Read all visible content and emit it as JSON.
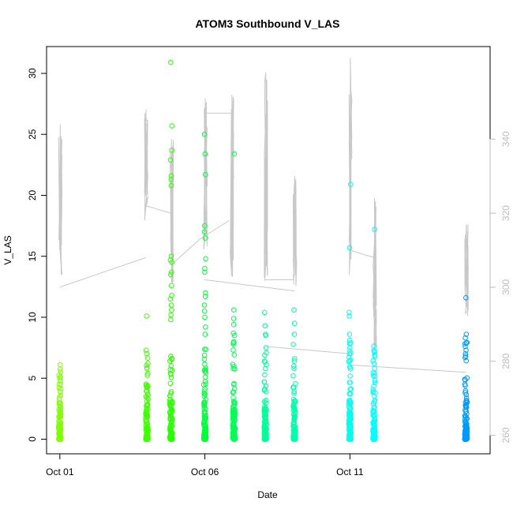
{
  "chart_data": {
    "type": "scatter",
    "title": "ATOM3 Southbound V_LAS",
    "xlabel": "Date",
    "ylabel": "V_LAS",
    "x_axis": {
      "type": "date",
      "range": [
        "2015-09-30T13:00",
        "2015-10-15T20:00"
      ],
      "ticks": [
        {
          "value": "2015-10-01",
          "label": "Oct 01"
        },
        {
          "value": "2015-10-06",
          "label": "Oct 06"
        },
        {
          "value": "2015-10-11",
          "label": "Oct 11"
        }
      ]
    },
    "y_axis_left": {
      "range": [
        -1.2,
        32.2
      ],
      "ticks": [
        0,
        5,
        10,
        15,
        20,
        25,
        30
      ]
    },
    "y_axis_right": {
      "range": [
        255,
        365
      ],
      "ticks": [
        260,
        280,
        300,
        320,
        340
      ],
      "color": "#bdbdbd"
    },
    "grid": false,
    "legend": "none",
    "points_color_scale": "green-to-blue by date",
    "clusters": [
      {
        "x": "2015-10-01T00:00",
        "color": "#80ff00",
        "max": 6.1,
        "outliers": [
          6.1,
          5.0,
          4.8,
          4.5,
          4.2,
          3.9,
          3.6,
          3.3,
          3.0
        ]
      },
      {
        "x": "2015-10-04T00:00",
        "color": "#40ff00",
        "max": 10.1,
        "outliers": [
          10.1,
          7.3,
          3.1,
          2.2,
          1.5
        ]
      },
      {
        "x": "2015-10-04T20:00",
        "color": "#2aff00",
        "max": 30.9,
        "outliers": [
          30.9,
          25.7,
          23.7,
          22.9,
          21.6,
          21.3,
          20.8,
          15.0,
          14.7,
          14.5,
          13.7,
          13.5,
          12.6,
          11.8,
          11.5,
          11.0,
          10.6,
          10.2,
          9.8
        ]
      },
      {
        "x": "2015-10-06T00:00",
        "color": "#00ff3a",
        "max": 25.0,
        "outliers": [
          25.0,
          23.4,
          21.7,
          17.5,
          17.0,
          16.5,
          14.8,
          14.0,
          13.7,
          12.0,
          11.7,
          11.0,
          10.5,
          10.0,
          9.2,
          8.6
        ]
      },
      {
        "x": "2015-10-07T00:00",
        "color": "#00ff55",
        "max": 23.4,
        "outliers": [
          23.4,
          10.6,
          9.9,
          9.4,
          8.7,
          8.5,
          8.0
        ]
      },
      {
        "x": "2015-10-08T02:00",
        "color": "#00ff99",
        "max": 10.4,
        "outliers": [
          10.4,
          9.3,
          8.6,
          8.5,
          7.5,
          6.9
        ]
      },
      {
        "x": "2015-10-09T02:00",
        "color": "#00ffaa",
        "max": 10.6,
        "outliers": [
          10.6,
          9.5,
          8.6,
          6.4,
          5.8
        ]
      },
      {
        "x": "2015-10-11T00:00",
        "color": "#00ffee",
        "max": 20.9,
        "outliers": [
          20.9,
          15.7,
          10.4,
          10.1,
          8.6,
          8.1,
          7.5,
          7.0,
          6.5
        ]
      },
      {
        "x": "2015-10-11T20:00",
        "color": "#00ffff",
        "max": 17.2,
        "outliers": [
          17.2,
          7.3,
          6.9,
          6.2,
          5.4
        ]
      },
      {
        "x": "2015-10-15T00:00",
        "color": "#0099ff",
        "max": 11.6,
        "outliers": [
          11.6,
          8.6,
          8.3,
          7.9,
          7.6,
          7.3,
          7.0,
          6.7
        ]
      }
    ],
    "gray_series": {
      "axis": "right",
      "color": "#c8c8c8",
      "bursts": [
        {
          "x": "2015-10-01T00:00",
          "low": 301,
          "high": 344
        },
        {
          "x": "2015-10-03T23:00",
          "low": 318,
          "high": 348
        },
        {
          "x": "2015-10-04T20:00",
          "low": 300,
          "high": 340
        },
        {
          "x": "2015-10-06T00:00",
          "low": 310,
          "high": 351
        },
        {
          "x": "2015-10-06T22:00",
          "low": 302,
          "high": 352
        },
        {
          "x": "2015-10-08T02:00",
          "low": 300,
          "high": 358
        },
        {
          "x": "2015-10-09T02:00",
          "low": 300,
          "high": 330
        },
        {
          "x": "2015-10-11T00:00",
          "low": 300,
          "high": 362
        },
        {
          "x": "2015-10-11T20:00",
          "low": 282,
          "high": 324
        },
        {
          "x": "2015-10-15T00:00",
          "low": 292,
          "high": 317
        }
      ],
      "connections": [
        {
          "from": [
            "2015-10-01T00:00",
            300
          ],
          "to": [
            "2015-10-03T23:00",
            308
          ]
        },
        {
          "from": [
            "2015-10-03T23:00",
            322
          ],
          "to": [
            "2015-10-04T20:00",
            320
          ]
        },
        {
          "from": [
            "2015-10-04T20:00",
            306
          ],
          "to": [
            "2015-10-05T20:00",
            313
          ]
        },
        {
          "from": [
            "2015-10-05T20:00",
            313
          ],
          "to": [
            "2015-10-06T20:00",
            318
          ]
        },
        {
          "from": [
            "2015-10-06T00:00",
            347
          ],
          "to": [
            "2015-10-06T22:00",
            347
          ]
        },
        {
          "from": [
            "2015-10-06T00:00",
            302
          ],
          "to": [
            "2015-10-09T02:00",
            299
          ]
        },
        {
          "from": [
            "2015-10-08T02:00",
            302
          ],
          "to": [
            "2015-10-09T02:00",
            302
          ]
        },
        {
          "from": [
            "2015-10-08T03:00",
            284
          ],
          "to": [
            "2015-10-11T00:00",
            282
          ]
        },
        {
          "from": [
            "2015-10-11T00:00",
            310
          ],
          "to": [
            "2015-10-11T20:00",
            308
          ]
        },
        {
          "from": [
            "2015-10-11T00:00",
            279
          ],
          "to": [
            "2015-10-15T00:00",
            277
          ]
        }
      ]
    }
  }
}
